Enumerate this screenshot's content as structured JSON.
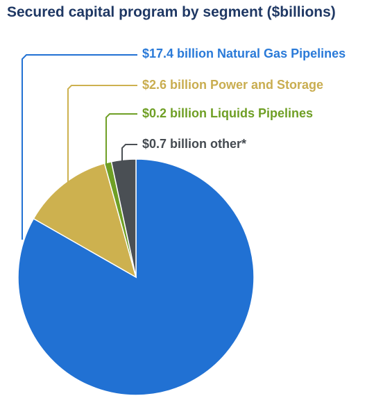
{
  "title": "Secured capital program by segment ($billions)",
  "colors": {
    "title": "#1f3864"
  },
  "chart_data": {
    "type": "pie",
    "title": "Secured capital program by segment ($billions)",
    "slices": [
      {
        "label": "$17.4 billion Natural Gas Pipelines",
        "value": 17.4,
        "color": "#2171d3",
        "label_color": "#2a7ad8"
      },
      {
        "label": "$2.6 billion Power and Storage",
        "value": 2.6,
        "color": "#cdb14f",
        "label_color": "#c9ad50"
      },
      {
        "label": "$0.2 billion Liquids Pipelines",
        "value": 0.2,
        "color": "#6f9f25",
        "label_color": "#6f9f25"
      },
      {
        "label": "$0.7 billion other*",
        "value": 0.7,
        "color": "#4a4f54",
        "label_color": "#444a50"
      }
    ],
    "legend": "callout labels above the pie"
  }
}
